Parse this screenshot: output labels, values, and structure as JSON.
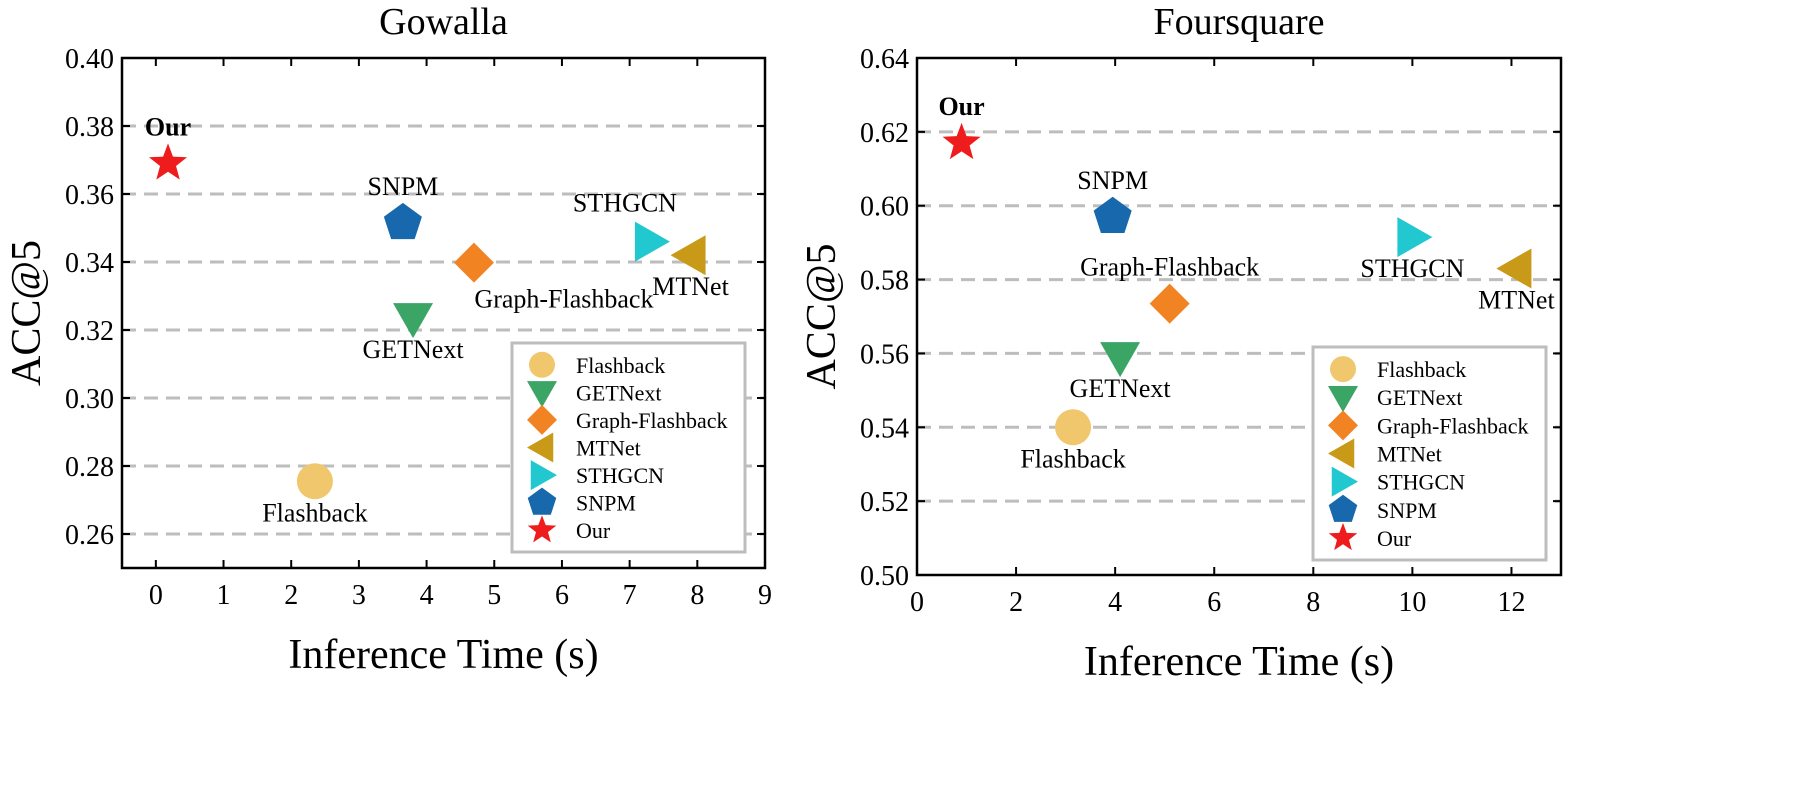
{
  "chart_data": [
    {
      "type": "scatter",
      "title": "Gowalla",
      "xlabel": "Inference Time (s)",
      "ylabel": "ACC@5",
      "xlim": [
        -0.5,
        9
      ],
      "ylim": [
        0.25,
        0.4
      ],
      "xticks": [
        0,
        1,
        2,
        3,
        4,
        5,
        6,
        7,
        8,
        9
      ],
      "yticks": [
        0.26,
        0.28,
        0.3,
        0.32,
        0.34,
        0.36,
        0.38,
        0.4
      ],
      "ytick_labels": [
        "0.26",
        "0.28",
        "0.30",
        "0.32",
        "0.34",
        "0.36",
        "0.38",
        "0.40"
      ],
      "grid": "horizontal dashed",
      "legend_position": "bottom-right",
      "series": [
        {
          "name": "Flashback",
          "marker": "circle",
          "color": "#F0C76D",
          "x": 2.35,
          "y": 0.2755,
          "label": "Flashback",
          "label_position": "below"
        },
        {
          "name": "GETNext",
          "marker": "triangle-down",
          "color": "#3AA565",
          "x": 3.8,
          "y": 0.3235,
          "label": "GETNext",
          "label_position": "below"
        },
        {
          "name": "Graph-Flashback",
          "marker": "diamond",
          "color": "#F28322",
          "x": 4.7,
          "y": 0.3398,
          "label": "Graph-Flashback",
          "label_position": "below-right"
        },
        {
          "name": "MTNet",
          "marker": "triangle-left",
          "color": "#C99A17",
          "x": 7.9,
          "y": 0.342,
          "label": "MTNet",
          "label_position": "below"
        },
        {
          "name": "STHGCN",
          "marker": "triangle-right",
          "color": "#22C8CF",
          "x": 7.3,
          "y": 0.346,
          "label": "STHGCN",
          "label_position": "above-left"
        },
        {
          "name": "SNPM",
          "marker": "pentagon",
          "color": "#1768AC",
          "x": 3.65,
          "y": 0.3515,
          "label": "SNPM",
          "label_position": "above"
        },
        {
          "name": "Our",
          "marker": "star",
          "color": "#EE1C1C",
          "x": 0.18,
          "y": 0.369,
          "label": "Our",
          "label_position": "above",
          "label_bold": true
        }
      ]
    },
    {
      "type": "scatter",
      "title": "Foursquare",
      "xlabel": "Inference Time (s)",
      "ylabel": "ACC@5",
      "xlim": [
        0,
        13
      ],
      "ylim": [
        0.5,
        0.64
      ],
      "xticks": [
        0,
        2,
        4,
        6,
        8,
        10,
        12
      ],
      "yticks": [
        0.5,
        0.52,
        0.54,
        0.56,
        0.58,
        0.6,
        0.62,
        0.64
      ],
      "ytick_labels": [
        "0.50",
        "0.52",
        "0.54",
        "0.56",
        "0.58",
        "0.60",
        "0.62",
        "0.64"
      ],
      "grid": "horizontal dashed",
      "legend_position": "bottom-right",
      "series": [
        {
          "name": "Flashback",
          "marker": "circle",
          "color": "#F0C76D",
          "x": 3.15,
          "y": 0.54,
          "label": "Flashback",
          "label_position": "below"
        },
        {
          "name": "GETNext",
          "marker": "triangle-down",
          "color": "#3AA565",
          "x": 4.1,
          "y": 0.559,
          "label": "GETNext",
          "label_position": "below"
        },
        {
          "name": "Graph-Flashback",
          "marker": "diamond",
          "color": "#F28322",
          "x": 5.1,
          "y": 0.5735,
          "label": "Graph-Flashback",
          "label_position": "above"
        },
        {
          "name": "MTNet",
          "marker": "triangle-left",
          "color": "#C99A17",
          "x": 12.1,
          "y": 0.583,
          "label": "MTNet",
          "label_position": "below"
        },
        {
          "name": "STHGCN",
          "marker": "triangle-right",
          "color": "#22C8CF",
          "x": 10.0,
          "y": 0.5915,
          "label": "STHGCN",
          "label_position": "below"
        },
        {
          "name": "SNPM",
          "marker": "pentagon",
          "color": "#1768AC",
          "x": 3.95,
          "y": 0.597,
          "label": "SNPM",
          "label_position": "above"
        },
        {
          "name": "Our",
          "marker": "star",
          "color": "#EE1C1C",
          "x": 0.9,
          "y": 0.617,
          "label": "Our",
          "label_position": "above",
          "label_bold": true
        }
      ]
    }
  ]
}
